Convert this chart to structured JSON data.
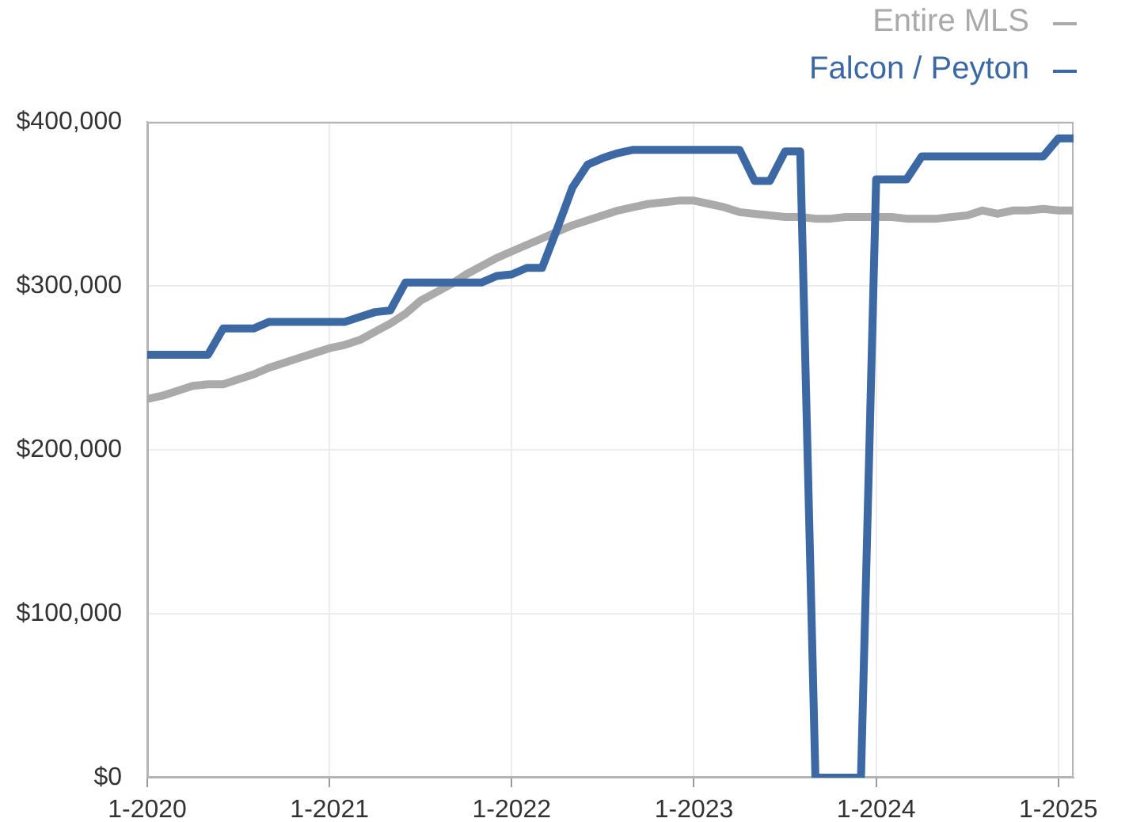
{
  "chart_data": {
    "type": "line",
    "x": [
      "2020-01",
      "2020-02",
      "2020-03",
      "2020-04",
      "2020-05",
      "2020-06",
      "2020-07",
      "2020-08",
      "2020-09",
      "2020-10",
      "2020-11",
      "2020-12",
      "2021-01",
      "2021-02",
      "2021-03",
      "2021-04",
      "2021-05",
      "2021-06",
      "2021-07",
      "2021-08",
      "2021-09",
      "2021-10",
      "2021-11",
      "2021-12",
      "2022-01",
      "2022-02",
      "2022-03",
      "2022-04",
      "2022-05",
      "2022-06",
      "2022-07",
      "2022-08",
      "2022-09",
      "2022-10",
      "2022-11",
      "2022-12",
      "2023-01",
      "2023-02",
      "2023-03",
      "2023-04",
      "2023-05",
      "2023-06",
      "2023-07",
      "2023-08",
      "2023-09",
      "2023-10",
      "2023-11",
      "2023-12",
      "2024-01",
      "2024-02",
      "2024-03",
      "2024-04",
      "2024-05",
      "2024-06",
      "2024-07",
      "2024-08",
      "2024-09",
      "2024-10",
      "2024-11",
      "2024-12",
      "2025-01",
      "2025-02"
    ],
    "series": [
      {
        "name": "Entire MLS",
        "color": "#aaaaaa",
        "values": [
          231000,
          233000,
          236000,
          239000,
          240000,
          240000,
          243000,
          246000,
          250000,
          253000,
          256000,
          259000,
          262000,
          264000,
          267000,
          272000,
          277000,
          283000,
          291000,
          296000,
          301000,
          307000,
          312000,
          317000,
          321000,
          325000,
          329000,
          333000,
          337000,
          340000,
          343000,
          346000,
          348000,
          350000,
          351000,
          352000,
          352000,
          350000,
          348000,
          345000,
          344000,
          343000,
          342000,
          342000,
          341000,
          341000,
          342000,
          342000,
          342000,
          342000,
          341000,
          341000,
          341000,
          342000,
          343000,
          346000,
          344000,
          346000,
          346000,
          347000,
          346000,
          346000
        ]
      },
      {
        "name": "Falcon / Peyton",
        "color": "#3c68a4",
        "values": [
          258000,
          258000,
          258000,
          258000,
          258000,
          274000,
          274000,
          274000,
          278000,
          278000,
          278000,
          278000,
          278000,
          278000,
          281000,
          284000,
          285000,
          302000,
          302000,
          302000,
          302000,
          302000,
          302000,
          306000,
          307000,
          311000,
          311000,
          335000,
          360000,
          374000,
          378000,
          381000,
          383000,
          383000,
          383000,
          383000,
          383000,
          383000,
          383000,
          383000,
          364000,
          364000,
          382000,
          382000,
          0,
          0,
          0,
          0,
          365000,
          365000,
          365000,
          379000,
          379000,
          379000,
          379000,
          379000,
          379000,
          379000,
          379000,
          379000,
          390000,
          390000
        ]
      }
    ],
    "xlim": [
      "2020-01",
      "2025-02"
    ],
    "xticks": [
      {
        "value": "2020-01",
        "label": "1-2020"
      },
      {
        "value": "2021-01",
        "label": "1-2021"
      },
      {
        "value": "2022-01",
        "label": "1-2022"
      },
      {
        "value": "2023-01",
        "label": "1-2023"
      },
      {
        "value": "2024-01",
        "label": "1-2024"
      },
      {
        "value": "2025-01",
        "label": "1-2025"
      }
    ],
    "ylim": [
      0,
      400000
    ],
    "yticks": [
      {
        "value": 0,
        "label": "$0"
      },
      {
        "value": 100000,
        "label": "$100,000"
      },
      {
        "value": 200000,
        "label": "$200,000"
      },
      {
        "value": 300000,
        "label": "$300,000"
      },
      {
        "value": 400000,
        "label": "$400,000"
      }
    ],
    "grid": true,
    "legend": "top right"
  }
}
